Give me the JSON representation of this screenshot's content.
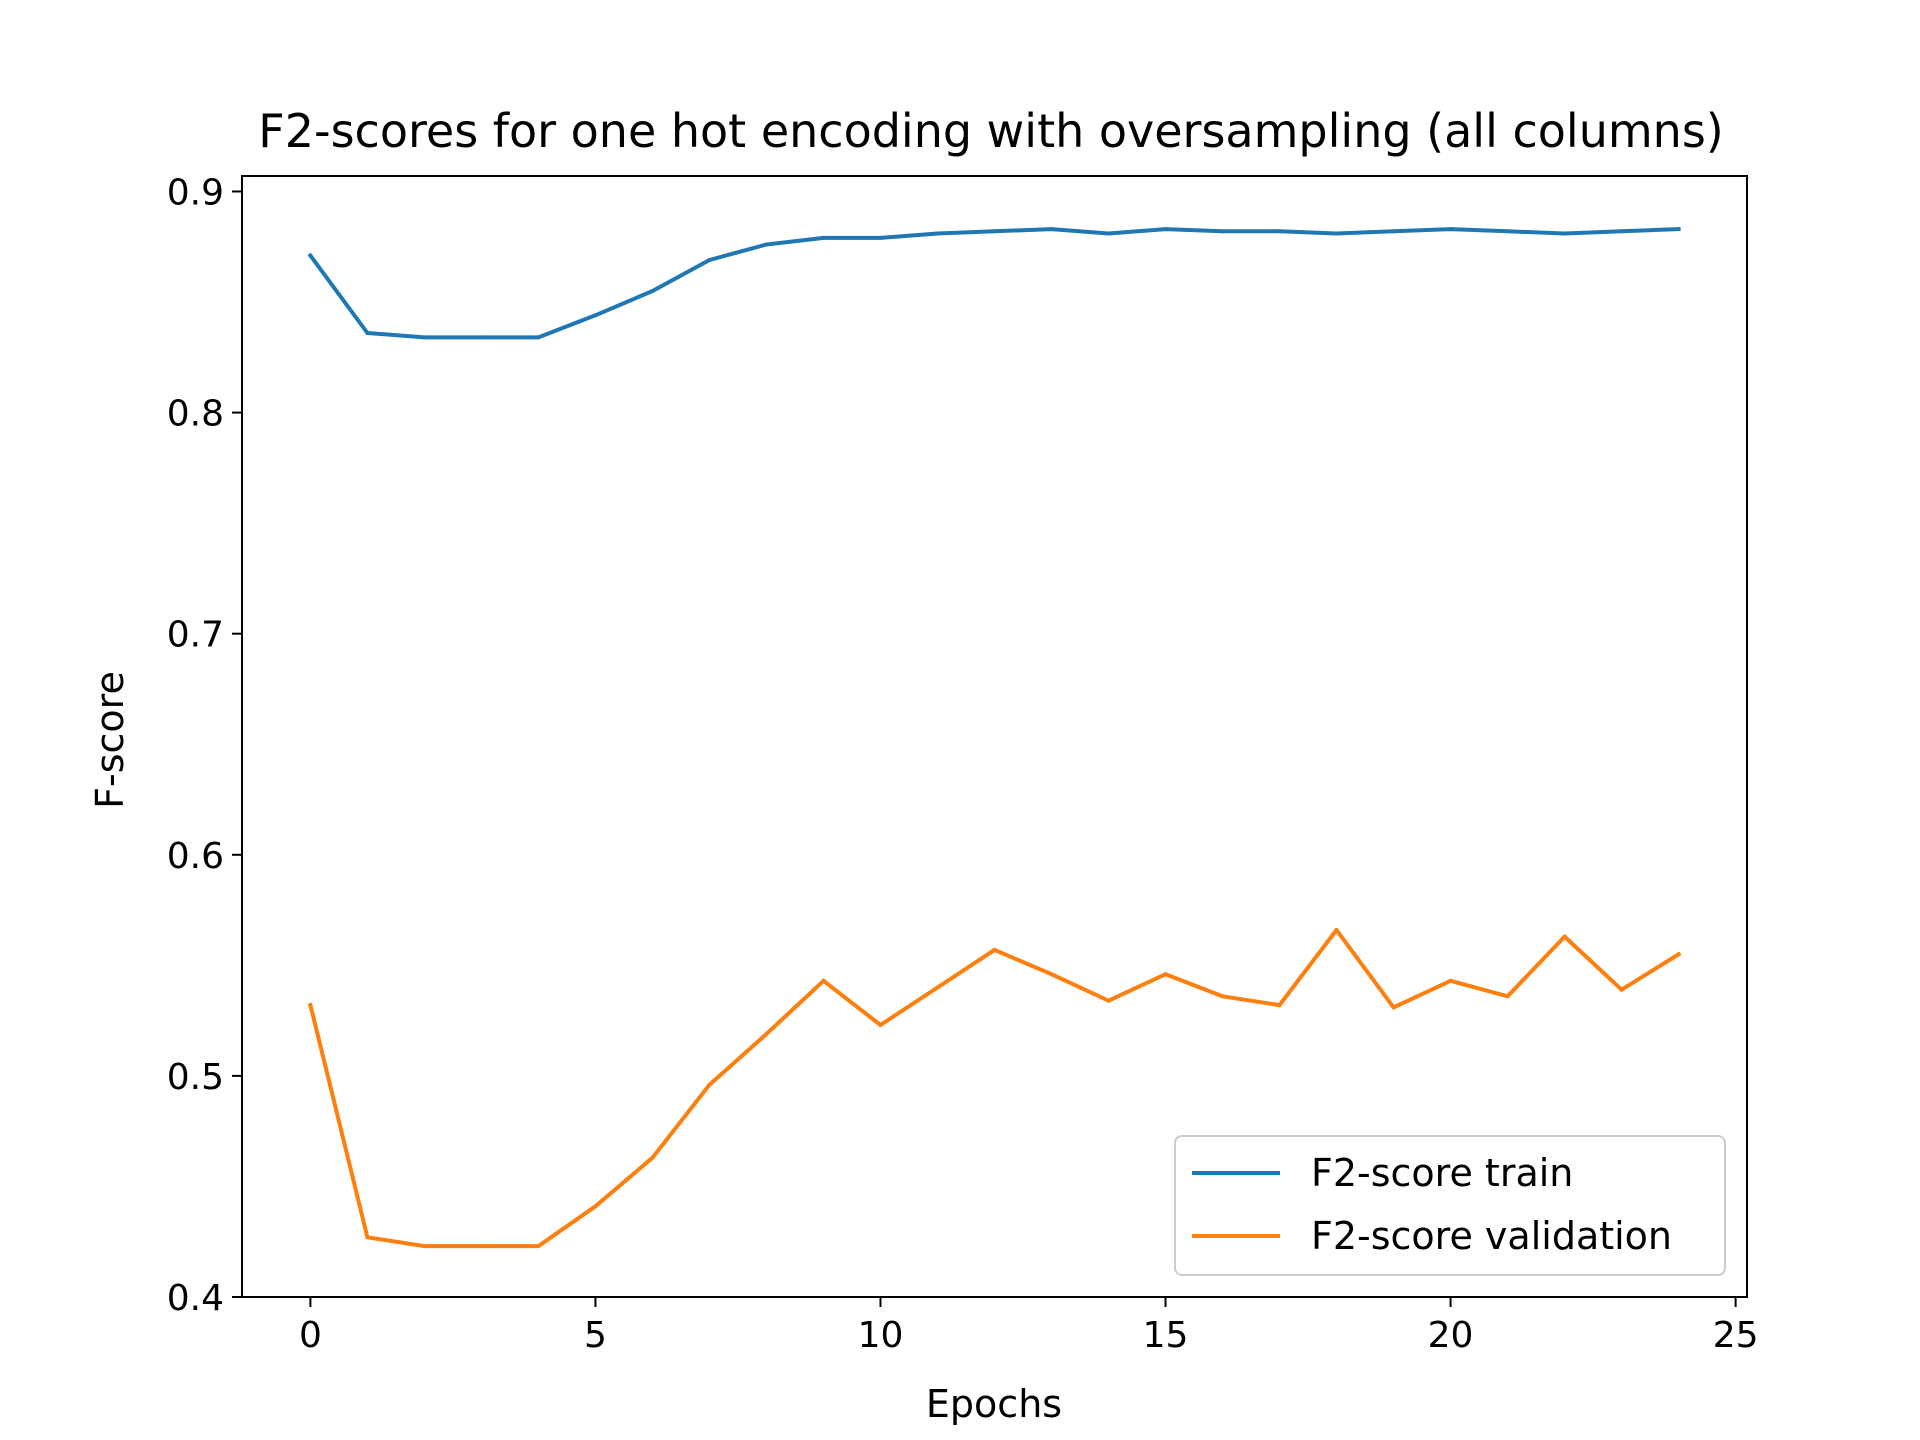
{
  "chart_data": {
    "type": "line",
    "title": "F2-scores for one hot encoding with oversampling (all columns)",
    "xlabel": "Epochs",
    "ylabel": "F-score",
    "xlim": [
      -1.2,
      25.2
    ],
    "ylim": [
      0.4,
      0.907
    ],
    "xticks": [
      0,
      5,
      10,
      15,
      20,
      25
    ],
    "xtick_labels": [
      "0",
      "5",
      "10",
      "15",
      "20",
      "25"
    ],
    "yticks": [
      0.4,
      0.5,
      0.6,
      0.7,
      0.8,
      0.9
    ],
    "ytick_labels": [
      "0.4",
      "0.5",
      "0.6",
      "0.7",
      "0.8",
      "0.9"
    ],
    "grid": false,
    "legend_position": "lower-right",
    "x": [
      0,
      1,
      2,
      3,
      4,
      5,
      6,
      7,
      8,
      9,
      10,
      11,
      12,
      13,
      14,
      15,
      16,
      17,
      18,
      19,
      20,
      21,
      22,
      23,
      24
    ],
    "series": [
      {
        "name": "F2-score train",
        "color": "#1f77b4",
        "values": [
          0.871,
          0.836,
          0.834,
          0.834,
          0.834,
          0.844,
          0.855,
          0.869,
          0.876,
          0.879,
          0.879,
          0.881,
          0.882,
          0.883,
          0.881,
          0.883,
          0.882,
          0.882,
          0.881,
          0.882,
          0.883,
          0.882,
          0.881,
          0.882,
          0.883
        ]
      },
      {
        "name": "F2-score validation",
        "color": "#ff7f0e",
        "values": [
          0.532,
          0.427,
          0.423,
          0.423,
          0.423,
          0.441,
          0.463,
          0.496,
          0.519,
          0.543,
          0.523,
          0.54,
          0.557,
          0.546,
          0.534,
          0.546,
          0.536,
          0.532,
          0.566,
          0.531,
          0.543,
          0.536,
          0.563,
          0.539,
          0.555
        ]
      }
    ]
  }
}
